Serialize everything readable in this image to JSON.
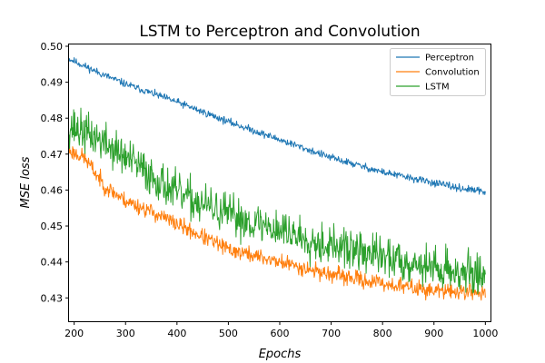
{
  "chart_data": {
    "type": "line",
    "title": "LSTM to Perceptron and Convolution",
    "xlabel": "Epochs",
    "ylabel": "MSE loss",
    "xlim": [
      190,
      1010
    ],
    "ylim": [
      0.4235,
      0.5005
    ],
    "xticks": [
      200,
      300,
      400,
      500,
      600,
      700,
      800,
      900,
      1000
    ],
    "xtick_labels": [
      "200",
      "300",
      "400",
      "500",
      "600",
      "700",
      "800",
      "900",
      "1000"
    ],
    "yticks": [
      0.43,
      0.44,
      0.45,
      0.46,
      0.47,
      0.48,
      0.49,
      0.5
    ],
    "ytick_labels": [
      "0.43",
      "0.44",
      "0.45",
      "0.46",
      "0.47",
      "0.48",
      "0.49",
      "0.50"
    ],
    "grid": false,
    "legend_position": "top-right",
    "x_range": [
      190,
      1000
    ],
    "series": [
      {
        "name": "Perceptron",
        "color": "#1f77b4",
        "noise": 0.0005,
        "seed": 11,
        "anchors": [
          [
            190,
            0.4965
          ],
          [
            250,
            0.4925
          ],
          [
            300,
            0.4895
          ],
          [
            400,
            0.4845
          ],
          [
            500,
            0.479
          ],
          [
            600,
            0.474
          ],
          [
            700,
            0.469
          ],
          [
            800,
            0.465
          ],
          [
            900,
            0.462
          ],
          [
            950,
            0.4605
          ],
          [
            1000,
            0.4595
          ]
        ]
      },
      {
        "name": "Convolution",
        "color": "#ff7f0e",
        "noise": 0.0011,
        "seed": 23,
        "anchors": [
          [
            190,
            0.471
          ],
          [
            220,
            0.469
          ],
          [
            260,
            0.461
          ],
          [
            300,
            0.457
          ],
          [
            350,
            0.454
          ],
          [
            400,
            0.4505
          ],
          [
            450,
            0.447
          ],
          [
            500,
            0.4435
          ],
          [
            600,
            0.44
          ],
          [
            700,
            0.4365
          ],
          [
            800,
            0.434
          ],
          [
            900,
            0.432
          ],
          [
            1000,
            0.4315
          ]
        ]
      },
      {
        "name": "LSTM",
        "color": "#2ca02c",
        "noise": 0.0028,
        "seed": 37,
        "anchors": [
          [
            190,
            0.478
          ],
          [
            250,
            0.474
          ],
          [
            300,
            0.469
          ],
          [
            350,
            0.464
          ],
          [
            400,
            0.459
          ],
          [
            450,
            0.456
          ],
          [
            500,
            0.453
          ],
          [
            600,
            0.449
          ],
          [
            700,
            0.4445
          ],
          [
            800,
            0.4415
          ],
          [
            900,
            0.4385
          ],
          [
            1000,
            0.436
          ]
        ]
      }
    ]
  }
}
